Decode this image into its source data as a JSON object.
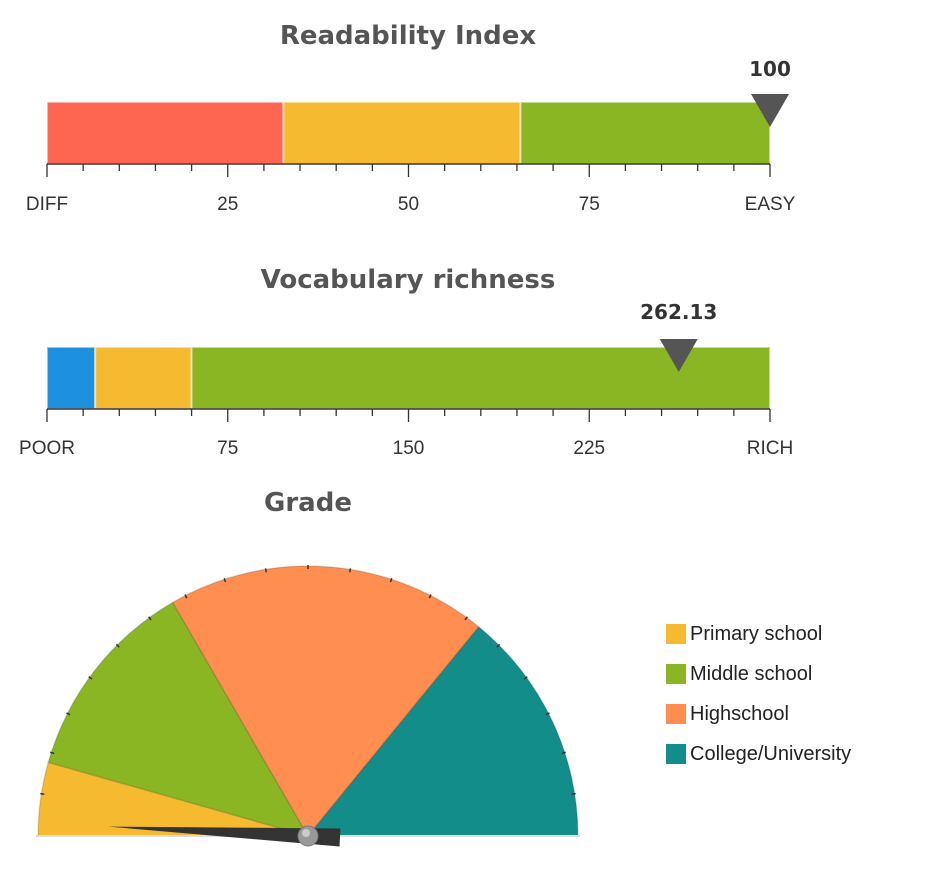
{
  "chart_data": [
    {
      "type": "linear-gauge",
      "title": "Readability Index",
      "value": 100,
      "value_label": "100",
      "min": 0,
      "max": 100,
      "tick_labels": [
        "DIFF",
        "25",
        "50",
        "75",
        "EASY"
      ],
      "tick_values": [
        0,
        25,
        50,
        75,
        100
      ],
      "bands": [
        {
          "from": 0,
          "to": 32.7,
          "color": "#ff6651"
        },
        {
          "from": 32.7,
          "to": 65.5,
          "color": "#f5ba2f"
        },
        {
          "from": 65.5,
          "to": 100,
          "color": "#8bb623"
        }
      ]
    },
    {
      "type": "linear-gauge",
      "title": "Vocabulary richness",
      "value": 262.13,
      "value_label": "262.13",
      "min": 0,
      "max": 300,
      "tick_labels": [
        "POOR",
        "75",
        "150",
        "225",
        "RICH"
      ],
      "tick_values": [
        0,
        75,
        150,
        225,
        300
      ],
      "bands": [
        {
          "from": 0,
          "to": 20,
          "color": "#1e90e0"
        },
        {
          "from": 20,
          "to": 60,
          "color": "#f5ba2f"
        },
        {
          "from": 60,
          "to": 300,
          "color": "#8bb623"
        }
      ]
    },
    {
      "type": "angular-gauge",
      "title": "Grade",
      "value": 1.5,
      "min": 0,
      "max": 100,
      "bands": [
        {
          "name": "Primary school",
          "from": 0,
          "to": 8.8,
          "color": "#f5ba2f"
        },
        {
          "name": "Middle school",
          "from": 8.8,
          "to": 33.3,
          "color": "#8bb623"
        },
        {
          "name": "Highschool",
          "from": 33.3,
          "to": 71.8,
          "color": "#ff8e50"
        },
        {
          "name": "College/University",
          "from": 71.8,
          "to": 100,
          "color": "#138d8a"
        }
      ]
    }
  ],
  "legend": [
    {
      "label": "Primary school",
      "color": "#f5ba2f"
    },
    {
      "label": "Middle school",
      "color": "#8bb623"
    },
    {
      "label": "Highschool",
      "color": "#ff8e50"
    },
    {
      "label": "College/University",
      "color": "#138d8a"
    }
  ]
}
